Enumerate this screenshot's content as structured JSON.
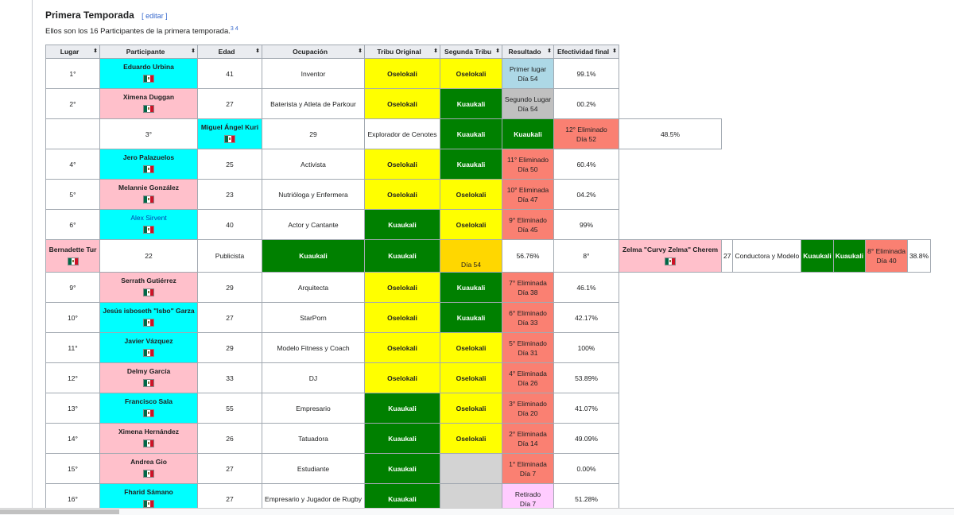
{
  "section": {
    "title": "Primera Temporada",
    "edit": "[ editar ]",
    "intro": "Ellos son los 16 Participantes de la primera temporada.",
    "refs": "3 4"
  },
  "headers": [
    "Lugar",
    "Participante",
    "Edad",
    "Ocupación",
    "Tribu Original",
    "Segunda Tribu",
    "Resultado",
    "Efectividad final"
  ],
  "rows": [
    {
      "place": "1°",
      "name": "Eduardo Urbina",
      "age": "41",
      "job": "Inventor",
      "t1": "Oselokali",
      "t2": "Oselokali",
      "r1": "Primer lugar",
      "r2": "Día 54",
      "eff": "99.1%"
    },
    {
      "place": "2°",
      "name": "Ximena Duggan",
      "age": "27",
      "job": "Baterista y Atleta de Parkour",
      "t1": "Oselokali",
      "t2": "Kuaukali",
      "r1": "Segundo Lugar",
      "r2": "Día 54",
      "eff": "00.2%"
    },
    {
      "place": "",
      "name": "3°",
      "age": "Miguel Ángel Kuri",
      "job": "29",
      "t1": "Explorador de Cenotes",
      "t2": "Kuaukali",
      "r1": "Kuaukali",
      "r2": "12° Eliminado",
      "r3": "Día 52",
      "eff": "48.5%"
    },
    {
      "place": "4°",
      "name": "Jero Palazuelos",
      "age": "25",
      "job": "Activista",
      "t1": "Oselokali",
      "t2": "Kuaukali",
      "r1": "11° Eliminado",
      "r2": "Día 50",
      "eff": "60.4%"
    },
    {
      "place": "5°",
      "name": "Melannie González",
      "age": "23",
      "job": "Nutrióloga y Enfermera",
      "t1": "Oselokali",
      "t2": "Oselokali",
      "r1": "10° Eliminada",
      "r2": "Día 47",
      "eff": "04.2%"
    },
    {
      "place": "6°",
      "name": "Alex Sirvent",
      "age": "40",
      "job": "Actor y Cantante",
      "t1": "Kuaukali",
      "t2": "Oselokali",
      "r1": "9° Eliminado",
      "r2": "Día 45",
      "eff": "99%"
    },
    {
      "place": "Bernadette Tur",
      "age": "22",
      "job": "Publicista",
      "t1": "Kuaukali",
      "t2": "Kuaukali",
      "r2": "Día 54",
      "eff": "56.76%",
      "extra_place": "8°",
      "extra_name": "Zelma \"Curvy Zelma\" Cherem",
      "extra_age": "27",
      "extra_job": "Conductora y Modelo",
      "extra_t1": "Kuaukali",
      "extra_t2": "Kuaukali",
      "extra_r1": "8° Eliminada",
      "extra_r2": "Día 40",
      "extra_eff": "38.8%"
    },
    {
      "place": "9°",
      "name": "Serrath Gutiérrez",
      "age": "29",
      "job": "Arquitecta",
      "t1": "Oselokali",
      "t2": "Kuaukali",
      "r1": "7° Eliminada",
      "r2": "Día 38",
      "eff": "46.1%"
    },
    {
      "place": "10°",
      "name": "Jesús isboseth \"Isbo\" Garza",
      "age": "27",
      "job": "StarPorn",
      "t1": "Oselokali",
      "t2": "Kuaukali",
      "r1": "6° Eliminado",
      "r2": "Día 33",
      "eff": "42.17%"
    },
    {
      "place": "11°",
      "name": "Javier Vázquez",
      "age": "29",
      "job": "Modelo Fitness y Coach",
      "t1": "Oselokali",
      "t2": "Oselokali",
      "r1": "5° Eliminado",
      "r2": "Día 31",
      "eff": "100%"
    },
    {
      "place": "12°",
      "name": "Delmy García",
      "age": "33",
      "job": "DJ",
      "t1": "Oselokali",
      "t2": "Oselokali",
      "r1": "4° Eliminada",
      "r2": "Día 26",
      "eff": "53.89%"
    },
    {
      "place": "13°",
      "name": "Francisco Sala",
      "age": "55",
      "job": "Empresario",
      "t1": "Kuaukali",
      "t2": "Oselokali",
      "r1": "3° Eliminado",
      "r2": "Día 20",
      "eff": "41.07%"
    },
    {
      "place": "14°",
      "name": "Ximena Hernández",
      "age": "26",
      "job": "Tatuadora",
      "t1": "Kuaukali",
      "t2": "Oselokali",
      "r1": "2° Eliminada",
      "r2": "Día 14",
      "eff": "49.09%"
    },
    {
      "place": "15°",
      "name": "Andrea Gio",
      "age": "27",
      "job": "Estudiante",
      "t1": "Kuaukali",
      "t2": "",
      "r1": "1° Eliminada",
      "r2": "Día 7",
      "eff": "0.00%"
    },
    {
      "place": "16°",
      "name": "Fharid Sámano",
      "age": "27",
      "job": "Empresario y Jugador de Rugby",
      "t1": "Kuaukali",
      "t2": "",
      "r1": "Retirado",
      "r2": "Día 7",
      "eff": "51.28%"
    }
  ],
  "colors": {
    "cyan": "#00ffff",
    "pink": "#ffc0cb",
    "yellow": "#ffff00",
    "green": "#008000",
    "salmon": "#fa8072"
  }
}
